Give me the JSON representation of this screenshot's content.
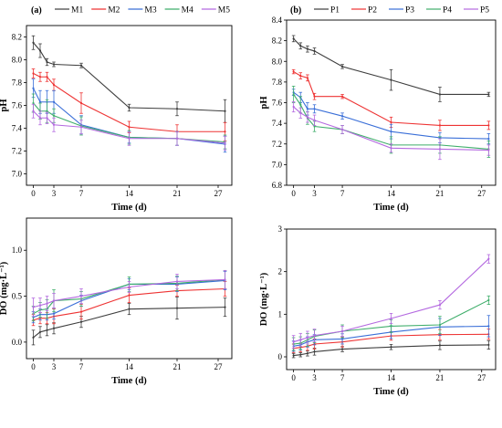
{
  "colors": {
    "S1": "#3d3d3d",
    "S2": "#ee3333",
    "S3": "#3a6fd8",
    "S4": "#3fae6b",
    "S5": "#b469e0"
  },
  "chart_data": [
    {
      "type": "line",
      "panel": "(a)",
      "xlabel": "Time (d)",
      "ylabel": "pH",
      "xlim": [
        -1,
        29
      ],
      "ylim": [
        6.9,
        8.3
      ],
      "xticks": [
        0,
        3,
        7,
        14,
        21,
        27
      ],
      "yticks": [
        7.0,
        7.2,
        7.4,
        7.6,
        7.8,
        8.0,
        8.2
      ],
      "ytick_decimals": 1,
      "x": [
        0,
        1,
        2,
        3,
        7,
        14,
        21,
        28
      ],
      "legend_position": "top",
      "series": [
        {
          "name": "M1",
          "color_key": "S1",
          "values": [
            8.15,
            8.08,
            7.98,
            7.96,
            7.95,
            7.58,
            7.57,
            7.55
          ],
          "errors": [
            0.06,
            0.06,
            0.03,
            0.02,
            0.02,
            0.03,
            0.06,
            0.1
          ]
        },
        {
          "name": "M2",
          "color_key": "S2",
          "values": [
            7.88,
            7.85,
            7.85,
            7.78,
            7.62,
            7.41,
            7.37,
            7.37
          ],
          "errors": [
            0.04,
            0.04,
            0.04,
            0.05,
            0.09,
            0.05,
            0.06,
            0.08
          ]
        },
        {
          "name": "M3",
          "color_key": "S3",
          "values": [
            7.75,
            7.63,
            7.63,
            7.63,
            7.43,
            7.32,
            7.31,
            7.26
          ],
          "errors": [
            0.08,
            0.1,
            0.1,
            0.1,
            0.08,
            0.05,
            0.06,
            0.07
          ]
        },
        {
          "name": "M4",
          "color_key": "S4",
          "values": [
            7.62,
            7.55,
            7.55,
            7.51,
            7.42,
            7.32,
            7.31,
            7.28
          ],
          "errors": [
            0.08,
            0.07,
            0.1,
            0.06,
            0.08,
            0.06,
            0.06,
            0.06
          ]
        },
        {
          "name": "M5",
          "color_key": "S5",
          "values": [
            7.55,
            7.49,
            7.49,
            7.43,
            7.41,
            7.31,
            7.31,
            7.27
          ],
          "errors": [
            0.06,
            0.06,
            0.05,
            0.06,
            0.06,
            0.06,
            0.06,
            0.06
          ]
        }
      ]
    },
    {
      "type": "line",
      "panel": "(b)",
      "xlabel": "Time (d)",
      "ylabel": "pH",
      "xlim": [
        -1,
        29
      ],
      "ylim": [
        6.8,
        8.4
      ],
      "xticks": [
        0,
        3,
        7,
        14,
        21,
        27
      ],
      "yticks": [
        6.8,
        7.0,
        7.2,
        7.4,
        7.6,
        7.8,
        8.0,
        8.2,
        8.4
      ],
      "ytick_decimals": 1,
      "x": [
        0,
        1,
        2,
        3,
        7,
        14,
        21,
        28
      ],
      "legend_position": "top",
      "series": [
        {
          "name": "P1",
          "color_key": "S1",
          "values": [
            8.22,
            8.15,
            8.12,
            8.1,
            7.95,
            7.82,
            7.68,
            7.68
          ],
          "errors": [
            0.03,
            0.03,
            0.03,
            0.03,
            0.02,
            0.1,
            0.07,
            0.02
          ]
        },
        {
          "name": "P2",
          "color_key": "S2",
          "values": [
            7.9,
            7.86,
            7.84,
            7.66,
            7.66,
            7.41,
            7.38,
            7.38
          ],
          "errors": [
            0.02,
            0.03,
            0.03,
            0.03,
            0.02,
            0.05,
            0.05,
            0.04
          ]
        },
        {
          "name": "P3",
          "color_key": "S3",
          "values": [
            7.7,
            7.65,
            7.54,
            7.54,
            7.47,
            7.32,
            7.26,
            7.25
          ],
          "errors": [
            0.03,
            0.05,
            0.06,
            0.04,
            0.03,
            0.07,
            0.05,
            0.05
          ]
        },
        {
          "name": "P4",
          "color_key": "S4",
          "values": [
            7.68,
            7.58,
            7.45,
            7.37,
            7.34,
            7.19,
            7.19,
            7.15
          ],
          "errors": [
            0.08,
            0.08,
            0.06,
            0.05,
            0.04,
            0.08,
            0.08,
            0.08
          ]
        },
        {
          "name": "P5",
          "color_key": "S5",
          "values": [
            7.56,
            7.5,
            7.46,
            7.43,
            7.34,
            7.16,
            7.15,
            7.14
          ],
          "errors": [
            0.05,
            0.05,
            0.05,
            0.05,
            0.04,
            0.04,
            0.1,
            0.05
          ]
        }
      ]
    },
    {
      "type": "line",
      "panel": "",
      "xlabel": "Time (d)",
      "ylabel": "DO (mg·L⁻¹)",
      "xlim": [
        -1,
        29
      ],
      "ylim": [
        -0.18,
        1.35
      ],
      "xticks": [
        0,
        3,
        7,
        14,
        21,
        27
      ],
      "yticks": [
        0.0,
        0.5,
        1.0
      ],
      "ytick_decimals": 1,
      "x": [
        0,
        1,
        2,
        3,
        7,
        14,
        21,
        28
      ],
      "series": [
        {
          "name": "M1",
          "color_key": "S1",
          "values": [
            0.05,
            0.11,
            0.13,
            0.15,
            0.22,
            0.36,
            0.37,
            0.38
          ],
          "errors": [
            0.08,
            0.06,
            0.06,
            0.06,
            0.06,
            0.06,
            0.12,
            0.1
          ]
        },
        {
          "name": "M2",
          "color_key": "S2",
          "values": [
            0.24,
            0.26,
            0.26,
            0.28,
            0.33,
            0.51,
            0.56,
            0.58
          ],
          "errors": [
            0.06,
            0.06,
            0.06,
            0.08,
            0.08,
            0.08,
            0.06,
            0.08
          ]
        },
        {
          "name": "M3",
          "color_key": "S3",
          "values": [
            0.27,
            0.3,
            0.3,
            0.31,
            0.45,
            0.63,
            0.63,
            0.67
          ],
          "errors": [
            0.06,
            0.06,
            0.06,
            0.06,
            0.06,
            0.06,
            0.08,
            0.1
          ]
        },
        {
          "name": "M4",
          "color_key": "S4",
          "values": [
            0.31,
            0.35,
            0.36,
            0.45,
            0.47,
            0.63,
            0.64,
            0.68
          ],
          "errors": [
            0.08,
            0.08,
            0.1,
            0.12,
            0.08,
            0.08,
            0.08,
            0.1
          ]
        },
        {
          "name": "M5",
          "color_key": "S5",
          "values": [
            0.38,
            0.4,
            0.42,
            0.45,
            0.5,
            0.6,
            0.66,
            0.68
          ],
          "errors": [
            0.1,
            0.08,
            0.08,
            0.08,
            0.08,
            0.06,
            0.08,
            0.1
          ]
        }
      ]
    },
    {
      "type": "line",
      "panel": "",
      "xlabel": "Time (d)",
      "ylabel": "DO (mg·L⁻¹)",
      "xlim": [
        -1,
        29
      ],
      "ylim": [
        -0.3,
        3.0
      ],
      "xticks": [
        0,
        3,
        7,
        14,
        21,
        27
      ],
      "yticks": [
        0,
        1,
        2,
        3
      ],
      "ytick_decimals": 0,
      "x": [
        0,
        1,
        2,
        3,
        7,
        14,
        21,
        28
      ],
      "series": [
        {
          "name": "P1",
          "color_key": "S1",
          "values": [
            0.03,
            0.05,
            0.08,
            0.12,
            0.18,
            0.23,
            0.27,
            0.28
          ],
          "errors": [
            0.05,
            0.05,
            0.06,
            0.08,
            0.06,
            0.06,
            0.1,
            0.1
          ]
        },
        {
          "name": "P2",
          "color_key": "S2",
          "values": [
            0.2,
            0.22,
            0.25,
            0.3,
            0.35,
            0.49,
            0.52,
            0.53
          ],
          "errors": [
            0.1,
            0.1,
            0.1,
            0.12,
            0.12,
            0.1,
            0.12,
            0.12
          ]
        },
        {
          "name": "P3",
          "color_key": "S3",
          "values": [
            0.25,
            0.28,
            0.35,
            0.4,
            0.42,
            0.58,
            0.7,
            0.72
          ],
          "errors": [
            0.12,
            0.12,
            0.12,
            0.12,
            0.12,
            0.15,
            0.2,
            0.25
          ]
        },
        {
          "name": "P4",
          "color_key": "S4",
          "values": [
            0.3,
            0.32,
            0.4,
            0.48,
            0.6,
            0.72,
            0.75,
            1.33
          ],
          "errors": [
            0.15,
            0.15,
            0.15,
            0.15,
            0.15,
            0.15,
            0.2,
            0.1
          ]
        },
        {
          "name": "P5",
          "color_key": "S5",
          "values": [
            0.35,
            0.4,
            0.45,
            0.5,
            0.6,
            0.9,
            1.22,
            2.3
          ],
          "errors": [
            0.15,
            0.15,
            0.15,
            0.15,
            0.12,
            0.12,
            0.1,
            0.1
          ]
        }
      ]
    }
  ]
}
